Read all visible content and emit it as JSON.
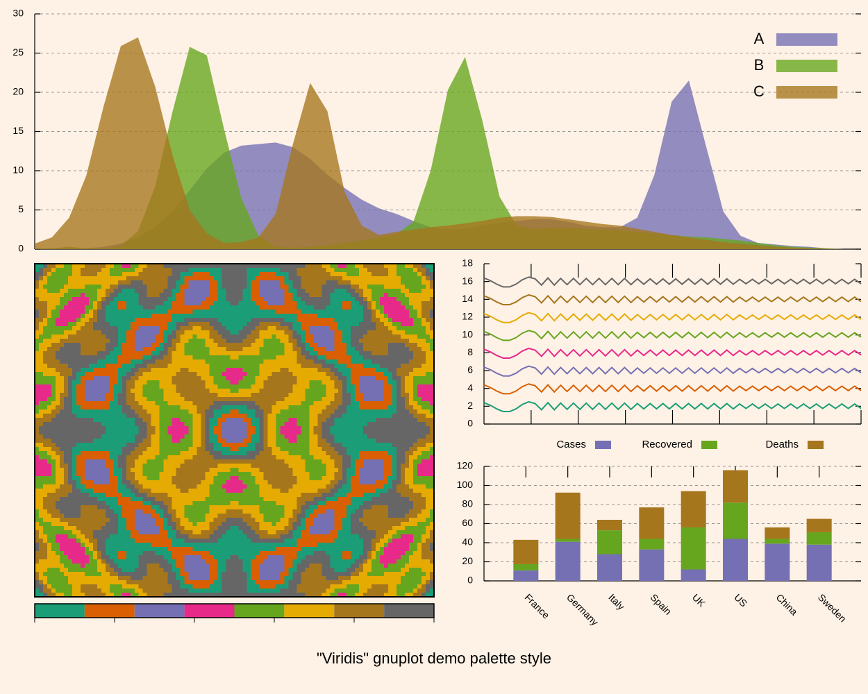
{
  "title": "\"Viridis\" gnuplot demo palette style",
  "chart_data": [
    {
      "type": "area",
      "ylim": [
        0,
        30
      ],
      "yticks": [
        0,
        5,
        10,
        15,
        20,
        25,
        30
      ],
      "grid": true,
      "legend": "top right",
      "series": [
        {
          "name": "A",
          "color": "#7570b3",
          "values": [
            0,
            0,
            0,
            0.1,
            0.3,
            0.7,
            1.5,
            2.8,
            4.8,
            7.5,
            10.3,
            12.3,
            13.2,
            13.4,
            13.6,
            13.0,
            11.5,
            9.5,
            7.8,
            6.3,
            5.2,
            4.5,
            3.6,
            2.8,
            2.5,
            2.6,
            3.0,
            3.4,
            3.6,
            3.8,
            3.8,
            3.5,
            3.0,
            2.8,
            2.8,
            4,
            9.5,
            18.8,
            21.5,
            13.1,
            4.8,
            1.7,
            0.8,
            0.6,
            0.4,
            0.3,
            0.1,
            0,
            0
          ]
        },
        {
          "name": "B",
          "color": "#66a61e",
          "values": [
            0,
            0.1,
            0.3,
            0.1,
            0.1,
            0.4,
            2.3,
            8.0,
            17.5,
            25.8,
            24.7,
            15.3,
            6.5,
            1.7,
            0.3,
            0.2,
            0.3,
            0.5,
            0.8,
            1.1,
            1.5,
            1.9,
            3.5,
            10,
            20.3,
            24.5,
            16.4,
            6.7,
            3,
            2.6,
            2.7,
            2.7,
            2.6,
            2.5,
            2.4,
            2.2,
            2.0,
            1.8,
            1.6,
            1.5,
            1.3,
            1.1,
            0.8,
            0.5,
            0.3,
            0.2,
            0.1,
            0,
            0
          ]
        },
        {
          "name": "C",
          "color": "#a6761d",
          "values": [
            0.7,
            1.5,
            4,
            9.4,
            18.2,
            25.9,
            27.0,
            20.7,
            12,
            5,
            2,
            0.8,
            0.9,
            1.5,
            4.5,
            13.4,
            21.2,
            17.6,
            7.3,
            3,
            1.8,
            2.2,
            2.5,
            2.8,
            3.0,
            3.3,
            3.6,
            4.0,
            4.2,
            4.2,
            4.1,
            3.8,
            3.5,
            3.2,
            3.0,
            2.6,
            2.2,
            1.8,
            1.5,
            1.2,
            0.9,
            0.7,
            0.5,
            0.3,
            0.2,
            0.1,
            0.05,
            0,
            0
          ]
        }
      ]
    },
    {
      "type": "line",
      "ylim": [
        0,
        18
      ],
      "yticks": [
        0,
        2,
        4,
        6,
        8,
        10,
        12,
        14,
        16,
        18
      ],
      "grid": false,
      "series": [
        {
          "color": "#1b9e77",
          "values": [
            2.4,
            2.1,
            1.7,
            1.4,
            1.4,
            1.7,
            2.2,
            2.5,
            2.3,
            1.6,
            2.4,
            1.6,
            2.35,
            1.65,
            2.35,
            1.65,
            2.35,
            1.65,
            2.35,
            1.65,
            2.35,
            1.65,
            2.35,
            1.65,
            2.3,
            1.7,
            2.3,
            1.7,
            2.3,
            1.7,
            2.3,
            1.7,
            2.3,
            1.7,
            2.3,
            1.7,
            2.3,
            1.7,
            2.3,
            1.7,
            2.25,
            1.75,
            2.25,
            1.75,
            2.25,
            1.75,
            2.25,
            1.75,
            2.25,
            1.75,
            2.25,
            1.75,
            2.25,
            1.75,
            2.25,
            1.75,
            2.25,
            1.75,
            2.25,
            1.75
          ]
        },
        {
          "color": "#d95f02",
          "values": [
            4.4,
            4.1,
            3.7,
            3.4,
            3.4,
            3.7,
            4.2,
            4.5,
            4.3,
            3.6,
            4.4,
            3.6,
            4.35,
            3.65,
            4.35,
            3.65,
            4.35,
            3.65,
            4.35,
            3.65,
            4.35,
            3.65,
            4.35,
            3.65,
            4.3,
            3.7,
            4.3,
            3.7,
            4.3,
            3.7,
            4.3,
            3.7,
            4.3,
            3.7,
            4.3,
            3.7,
            4.3,
            3.7,
            4.3,
            3.7,
            4.25,
            3.75,
            4.25,
            3.75,
            4.25,
            3.75,
            4.25,
            3.75,
            4.25,
            3.75,
            4.25,
            3.75,
            4.25,
            3.75,
            4.25,
            3.75,
            4.25,
            3.75,
            4.25,
            3.75
          ]
        },
        {
          "color": "#7570b3",
          "values": [
            6.4,
            6.1,
            5.7,
            5.4,
            5.4,
            5.7,
            6.2,
            6.5,
            6.3,
            5.6,
            6.4,
            5.6,
            6.35,
            5.65,
            6.35,
            5.65,
            6.35,
            5.65,
            6.35,
            5.65,
            6.35,
            5.65,
            6.35,
            5.65,
            6.3,
            5.7,
            6.3,
            5.7,
            6.3,
            5.7,
            6.3,
            5.7,
            6.3,
            5.7,
            6.3,
            5.7,
            6.3,
            5.7,
            6.3,
            5.7,
            6.25,
            5.75,
            6.25,
            5.75,
            6.25,
            5.75,
            6.25,
            5.75,
            6.25,
            5.75,
            6.25,
            5.75,
            6.25,
            5.75,
            6.25,
            5.75,
            6.25,
            5.75,
            6.25,
            5.75
          ]
        },
        {
          "color": "#e7298a",
          "values": [
            8.4,
            8.1,
            7.7,
            7.4,
            7.4,
            7.7,
            8.2,
            8.5,
            8.3,
            7.6,
            8.4,
            7.6,
            8.35,
            7.65,
            8.35,
            7.65,
            8.35,
            7.65,
            8.35,
            7.65,
            8.35,
            7.65,
            8.35,
            7.65,
            8.3,
            7.7,
            8.3,
            7.7,
            8.3,
            7.7,
            8.3,
            7.7,
            8.3,
            7.7,
            8.3,
            7.7,
            8.3,
            7.7,
            8.3,
            7.7,
            8.25,
            7.75,
            8.25,
            7.75,
            8.25,
            7.75,
            8.25,
            7.75,
            8.25,
            7.75,
            8.25,
            7.75,
            8.25,
            7.75,
            8.25,
            7.75,
            8.25,
            7.75,
            8.25,
            7.75
          ]
        },
        {
          "color": "#66a61e",
          "values": [
            10.4,
            10.1,
            9.7,
            9.4,
            9.4,
            9.7,
            10.2,
            10.5,
            10.3,
            9.6,
            10.4,
            9.6,
            10.35,
            9.65,
            10.35,
            9.65,
            10.35,
            9.65,
            10.35,
            9.65,
            10.35,
            9.65,
            10.35,
            9.65,
            10.3,
            9.7,
            10.3,
            9.7,
            10.3,
            9.7,
            10.3,
            9.7,
            10.3,
            9.7,
            10.3,
            9.7,
            10.3,
            9.7,
            10.3,
            9.7,
            10.25,
            9.75,
            10.25,
            9.75,
            10.25,
            9.75,
            10.25,
            9.75,
            10.25,
            9.75,
            10.25,
            9.75,
            10.25,
            9.75,
            10.25,
            9.75,
            10.25,
            9.75,
            10.25,
            9.75
          ]
        },
        {
          "color": "#e6ab02",
          "values": [
            12.4,
            12.1,
            11.7,
            11.4,
            11.4,
            11.7,
            12.2,
            12.5,
            12.3,
            11.6,
            12.4,
            11.6,
            12.35,
            11.65,
            12.35,
            11.65,
            12.35,
            11.65,
            12.35,
            11.65,
            12.35,
            11.65,
            12.35,
            11.65,
            12.3,
            11.7,
            12.3,
            11.7,
            12.3,
            11.7,
            12.3,
            11.7,
            12.3,
            11.7,
            12.3,
            11.7,
            12.3,
            11.7,
            12.3,
            11.7,
            12.25,
            11.75,
            12.25,
            11.75,
            12.25,
            11.75,
            12.25,
            11.75,
            12.25,
            11.75,
            12.25,
            11.75,
            12.25,
            11.75,
            12.25,
            11.75,
            12.25,
            11.75,
            12.25,
            11.75
          ]
        },
        {
          "color": "#a6761d",
          "values": [
            14.4,
            14.1,
            13.7,
            13.4,
            13.4,
            13.7,
            14.2,
            14.5,
            14.3,
            13.6,
            14.4,
            13.6,
            14.35,
            13.65,
            14.35,
            13.65,
            14.35,
            13.65,
            14.35,
            13.65,
            14.35,
            13.65,
            14.35,
            13.65,
            14.3,
            13.7,
            14.3,
            13.7,
            14.3,
            13.7,
            14.3,
            13.7,
            14.3,
            13.7,
            14.3,
            13.7,
            14.3,
            13.7,
            14.3,
            13.7,
            14.25,
            13.75,
            14.25,
            13.75,
            14.25,
            13.75,
            14.25,
            13.75,
            14.25,
            13.75,
            14.25,
            13.75,
            14.25,
            13.75,
            14.25,
            13.75,
            14.25,
            13.75,
            14.25,
            13.75
          ]
        },
        {
          "color": "#666666",
          "values": [
            16.4,
            16.1,
            15.7,
            15.4,
            15.4,
            15.7,
            16.2,
            16.5,
            16.3,
            15.6,
            16.4,
            15.6,
            16.35,
            15.65,
            16.35,
            15.65,
            16.35,
            15.65,
            16.35,
            15.65,
            16.35,
            15.65,
            16.35,
            15.65,
            16.3,
            15.7,
            16.3,
            15.7,
            16.3,
            15.7,
            16.3,
            15.7,
            16.3,
            15.7,
            16.3,
            15.7,
            16.3,
            15.7,
            16.3,
            15.7,
            16.25,
            15.75,
            16.25,
            15.75,
            16.25,
            15.75,
            16.25,
            15.75,
            16.25,
            15.75,
            16.25,
            15.75,
            16.25,
            15.75,
            16.25,
            15.75,
            16.25,
            15.75,
            16.25,
            15.75
          ]
        }
      ]
    },
    {
      "type": "bar",
      "stacked": true,
      "ylim": [
        0,
        120
      ],
      "yticks": [
        0,
        20,
        40,
        60,
        80,
        100,
        120
      ],
      "grid": true,
      "legend": "top",
      "categories": [
        "France",
        "Germany",
        "Italy",
        "Spain",
        "UK",
        "US",
        "China",
        "Sweden"
      ],
      "series": [
        {
          "name": "Cases",
          "color": "#7570b3",
          "values": [
            11,
            41,
            28,
            33,
            12,
            44,
            39,
            38
          ]
        },
        {
          "name": "Recovered",
          "color": "#66a61e",
          "values": [
            6.5,
            3,
            25,
            11,
            44,
            38,
            5,
            13
          ]
        },
        {
          "name": "Deaths",
          "color": "#a6761d",
          "values": [
            25.5,
            48.5,
            11,
            33,
            38,
            34,
            12,
            14
          ]
        }
      ]
    }
  ]
}
